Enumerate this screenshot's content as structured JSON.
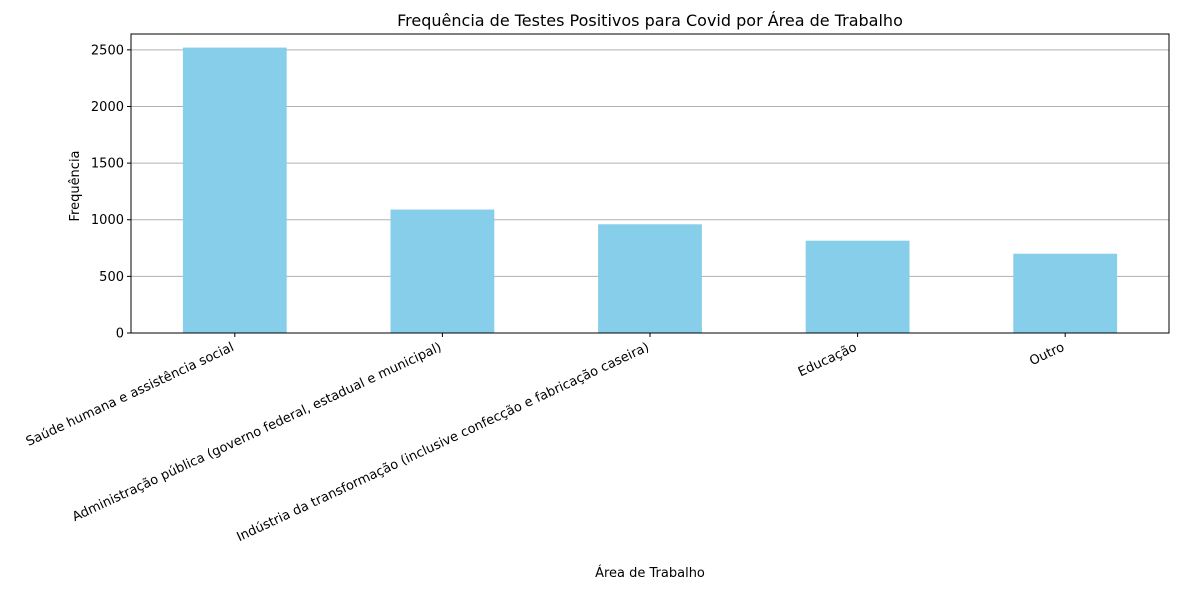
{
  "chart_data": {
    "type": "bar",
    "title": "Frequência de Testes Positivos para Covid por Área de Trabalho",
    "xlabel": "Área de Trabalho",
    "ylabel": "Frequência",
    "categories": [
      "Saúde humana e assistência social",
      "Administração pública (governo federal, estadual e municipal)",
      "Indústria da transformação (inclusive confecção e fabricação caseira)",
      "Educação",
      "Outro"
    ],
    "values": [
      2520,
      1090,
      960,
      815,
      700
    ],
    "ylim": [
      0,
      2640
    ],
    "yticks": [
      0,
      500,
      1000,
      1500,
      2000,
      2500
    ],
    "ytick_labels": [
      "0",
      "500",
      "1000",
      "1500",
      "2000",
      "2500"
    ],
    "grid": "y",
    "bar_color": "#87ceeb"
  }
}
